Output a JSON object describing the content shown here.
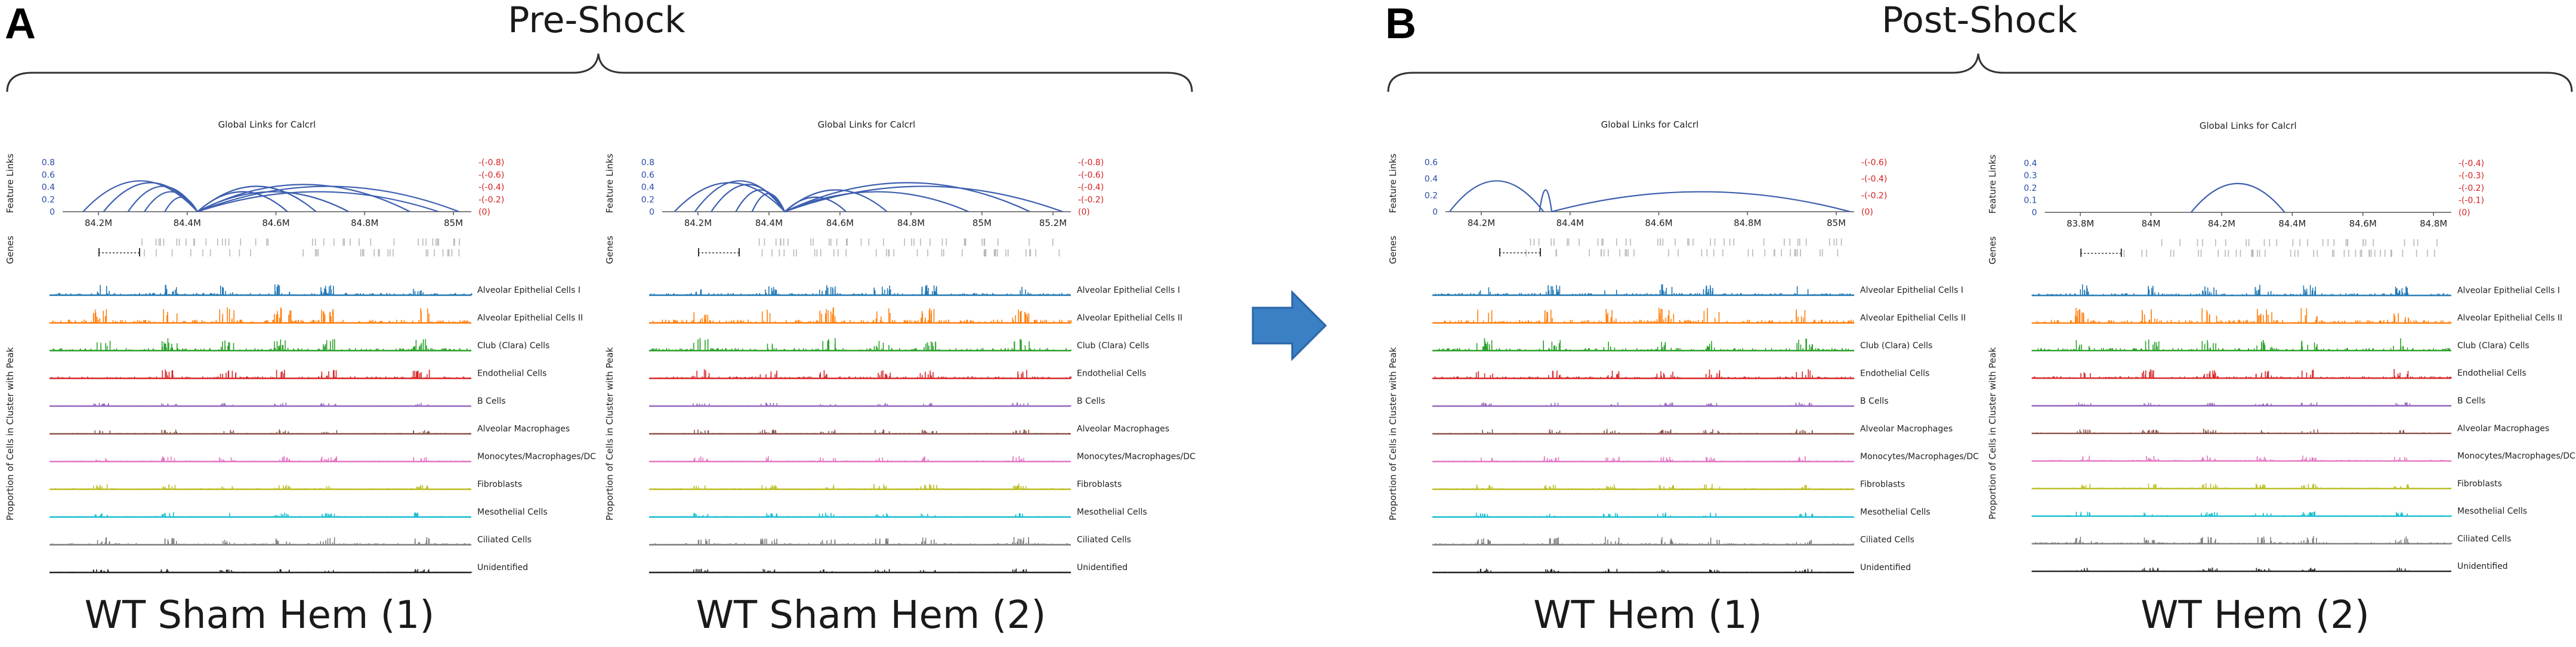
{
  "colors": {
    "link_arc": "#3d5fb0",
    "link_axis_left": "#2a4aa8",
    "link_axis_right": "#d42020",
    "arrow_fill": "#3b7fc4",
    "arrow_stroke": "#2a64a8",
    "gene_track": "#b8b8b8",
    "gene_dark": "#333333"
  },
  "panels": [
    {
      "letter": "A",
      "group_title": "Pre-Shock",
      "samples": [
        {
          "label": "WT Sham Hem (1)",
          "plot_title": "Global Links for Calcrl",
          "feature_links_label": "Feature Links",
          "genes_label": "Genes",
          "y_ticks_left": [
            "0.8",
            "0.6",
            "0.4",
            "0.2",
            "0"
          ],
          "y_ticks_right": [
            "-(-0.8)",
            "-(-0.6)",
            "-(-0.4)",
            "-(-0.2)",
            "(0)"
          ],
          "x_ticks": [
            "84.2M",
            "84.4M",
            "84.6M",
            "84.8M",
            "85M"
          ],
          "arcs": [
            [
              0.05,
              0.33,
              0.85
            ],
            [
              0.1,
              0.33,
              0.8
            ],
            [
              0.16,
              0.33,
              0.7
            ],
            [
              0.2,
              0.33,
              0.55
            ],
            [
              0.25,
              0.33,
              0.4
            ],
            [
              0.33,
              0.55,
              0.55
            ],
            [
              0.33,
              0.62,
              0.7
            ],
            [
              0.33,
              0.7,
              0.55
            ],
            [
              0.33,
              0.85,
              0.75
            ],
            [
              0.33,
              0.92,
              0.55
            ],
            [
              0.33,
              0.97,
              0.7
            ]
          ]
        },
        {
          "label": "WT Sham Hem (2)",
          "plot_title": "Global Links for Calcrl",
          "feature_links_label": "Feature Links",
          "genes_label": "Genes",
          "y_ticks_left": [
            "0.8",
            "0.6",
            "0.4",
            "0.2",
            "0"
          ],
          "y_ticks_right": [
            "-(-0.8)",
            "-(-0.6)",
            "-(-0.4)",
            "-(-0.2)",
            "(0)"
          ],
          "x_ticks": [
            "84.2M",
            "84.4M",
            "84.6M",
            "84.8M",
            "85M",
            "85.2M"
          ],
          "arcs": [
            [
              0.03,
              0.3,
              0.8
            ],
            [
              0.08,
              0.3,
              0.85
            ],
            [
              0.12,
              0.3,
              0.75
            ],
            [
              0.18,
              0.3,
              0.6
            ],
            [
              0.22,
              0.3,
              0.5
            ],
            [
              0.3,
              0.45,
              0.4
            ],
            [
              0.3,
              0.55,
              0.6
            ],
            [
              0.3,
              0.75,
              0.55
            ],
            [
              0.3,
              0.9,
              0.8
            ],
            [
              0.3,
              0.98,
              0.7
            ]
          ]
        }
      ]
    },
    {
      "letter": "B",
      "group_title": "Post-Shock",
      "samples": [
        {
          "label": "WT Hem (1)",
          "plot_title": "Global Links for Calcrl",
          "feature_links_label": "Feature Links",
          "genes_label": "Genes",
          "y_ticks_left": [
            "0.6",
            "0.4",
            "0.2",
            "0"
          ],
          "y_ticks_right": [
            "-(-0.6)",
            "-(-0.4)",
            "-(-0.2)",
            "(0)"
          ],
          "x_ticks": [
            "84.2M",
            "84.4M",
            "84.6M",
            "84.8M",
            "85M"
          ],
          "arcs": [
            [
              0.01,
              0.24,
              0.85
            ],
            [
              0.23,
              0.26,
              0.6
            ],
            [
              0.26,
              0.99,
              0.55
            ]
          ]
        },
        {
          "label": "WT Hem (2)",
          "plot_title": "Global Links for Calcrl",
          "feature_links_label": "Feature Links",
          "genes_label": "Genes",
          "y_ticks_left": [
            "0.4",
            "0.3",
            "0.2",
            "0.1",
            "0"
          ],
          "y_ticks_right": [
            "-(-0.4)",
            "-(-0.3)",
            "-(-0.2)",
            "-(-0.1)",
            "(0)"
          ],
          "x_ticks": [
            "83.8M",
            "84M",
            "84.2M",
            "84.4M",
            "84.6M",
            "84.8M"
          ],
          "arcs": [
            [
              0.36,
              0.59,
              0.8
            ]
          ]
        }
      ]
    }
  ],
  "peak_axis_label": "Proportion of Cells in Cluster with Peak",
  "cell_tracks": [
    {
      "name": "Alveolar Epithelial Cells I",
      "color": "#1f77b4",
      "intensity": 0.7
    },
    {
      "name": "Alveolar Epithelial Cells II",
      "color": "#ff7f0e",
      "intensity": 1.0
    },
    {
      "name": "Club (Clara) Cells",
      "color": "#2ca02c",
      "intensity": 0.8
    },
    {
      "name": "Endothelial Cells",
      "color": "#d62728",
      "intensity": 0.6
    },
    {
      "name": "B Cells",
      "color": "#9467bd",
      "intensity": 0.25
    },
    {
      "name": "Alveolar Macrophages",
      "color": "#8c564b",
      "intensity": 0.3
    },
    {
      "name": "Monocytes/Macrophages/DC",
      "color": "#e377c2",
      "intensity": 0.35
    },
    {
      "name": "Fibroblasts",
      "color": "#bcbd22",
      "intensity": 0.35
    },
    {
      "name": "Mesothelial Cells",
      "color": "#17becf",
      "intensity": 0.3
    },
    {
      "name": "Ciliated Cells",
      "color": "#7f7f7f",
      "intensity": 0.5
    },
    {
      "name": "Unidentified",
      "color": "#222222",
      "intensity": 0.25
    }
  ]
}
